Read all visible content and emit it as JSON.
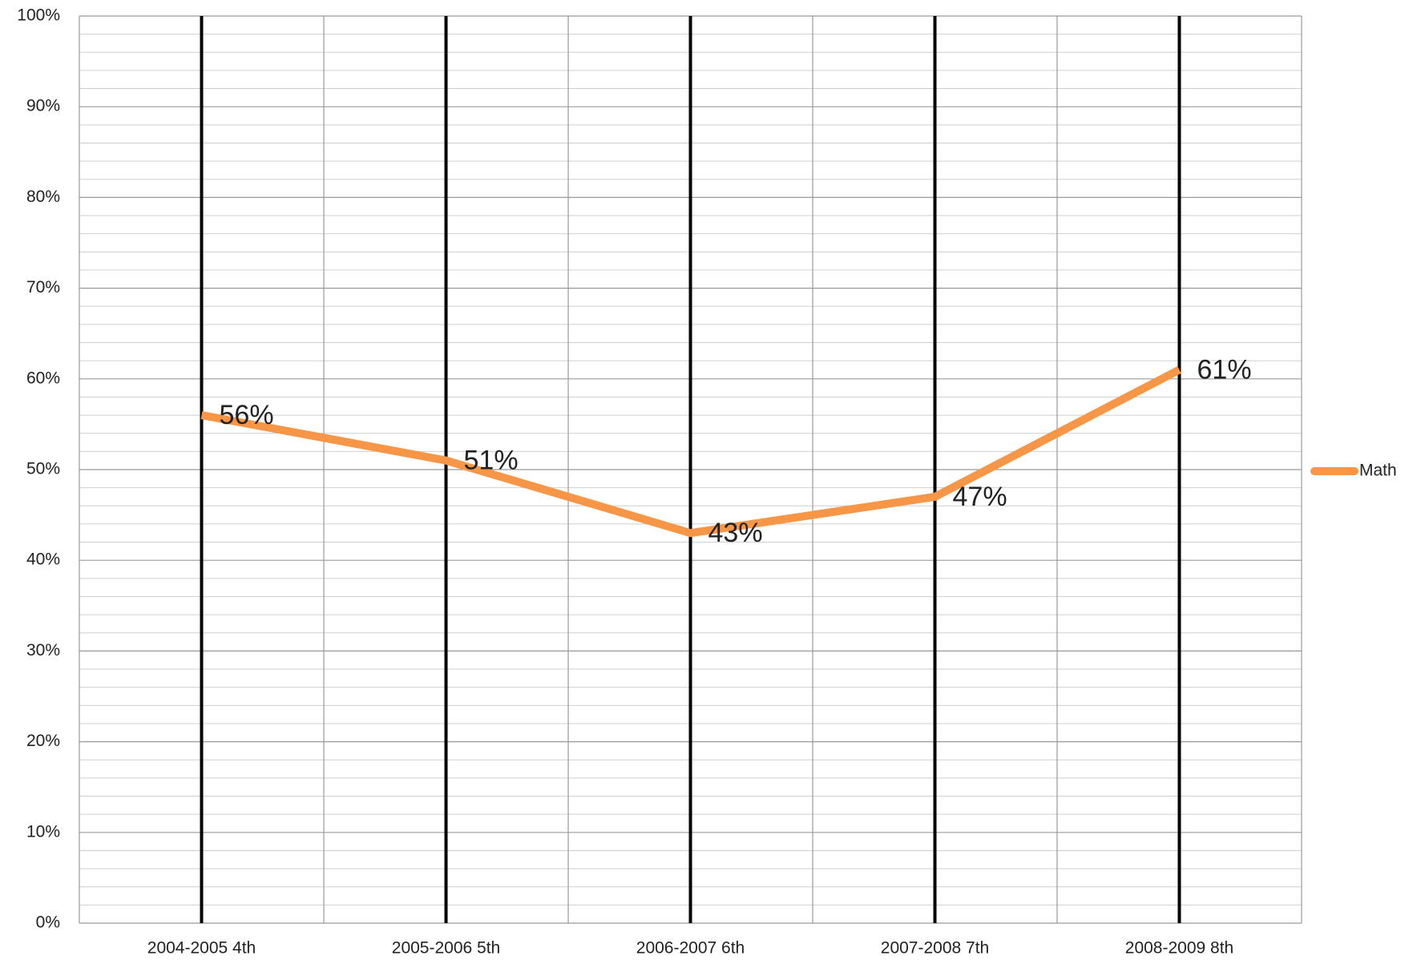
{
  "chart_data": {
    "type": "line",
    "categories": [
      "2004-2005 4th",
      "2005-2006 5th",
      "2006-2007 6th",
      "2007-2008 7th",
      "2008-2009 8th"
    ],
    "series": [
      {
        "name": "Math",
        "color": "#f79646",
        "values": [
          56,
          51,
          43,
          47,
          61
        ],
        "value_labels": [
          "56%",
          "51%",
          "43%",
          "47%",
          "61%"
        ]
      }
    ],
    "ylim": [
      0,
      100
    ],
    "yticks": [
      {
        "value": 0,
        "label": "0%"
      },
      {
        "value": 10,
        "label": "10%"
      },
      {
        "value": 20,
        "label": "20%"
      },
      {
        "value": 30,
        "label": "30%"
      },
      {
        "value": 40,
        "label": "40%"
      },
      {
        "value": 50,
        "label": "50%"
      },
      {
        "value": 60,
        "label": "60%"
      },
      {
        "value": 70,
        "label": "70%"
      },
      {
        "value": 80,
        "label": "80%"
      },
      {
        "value": 90,
        "label": "90%"
      },
      {
        "value": 100,
        "label": "100%"
      }
    ],
    "grid": true,
    "minor_grid": true,
    "legend": "right"
  }
}
